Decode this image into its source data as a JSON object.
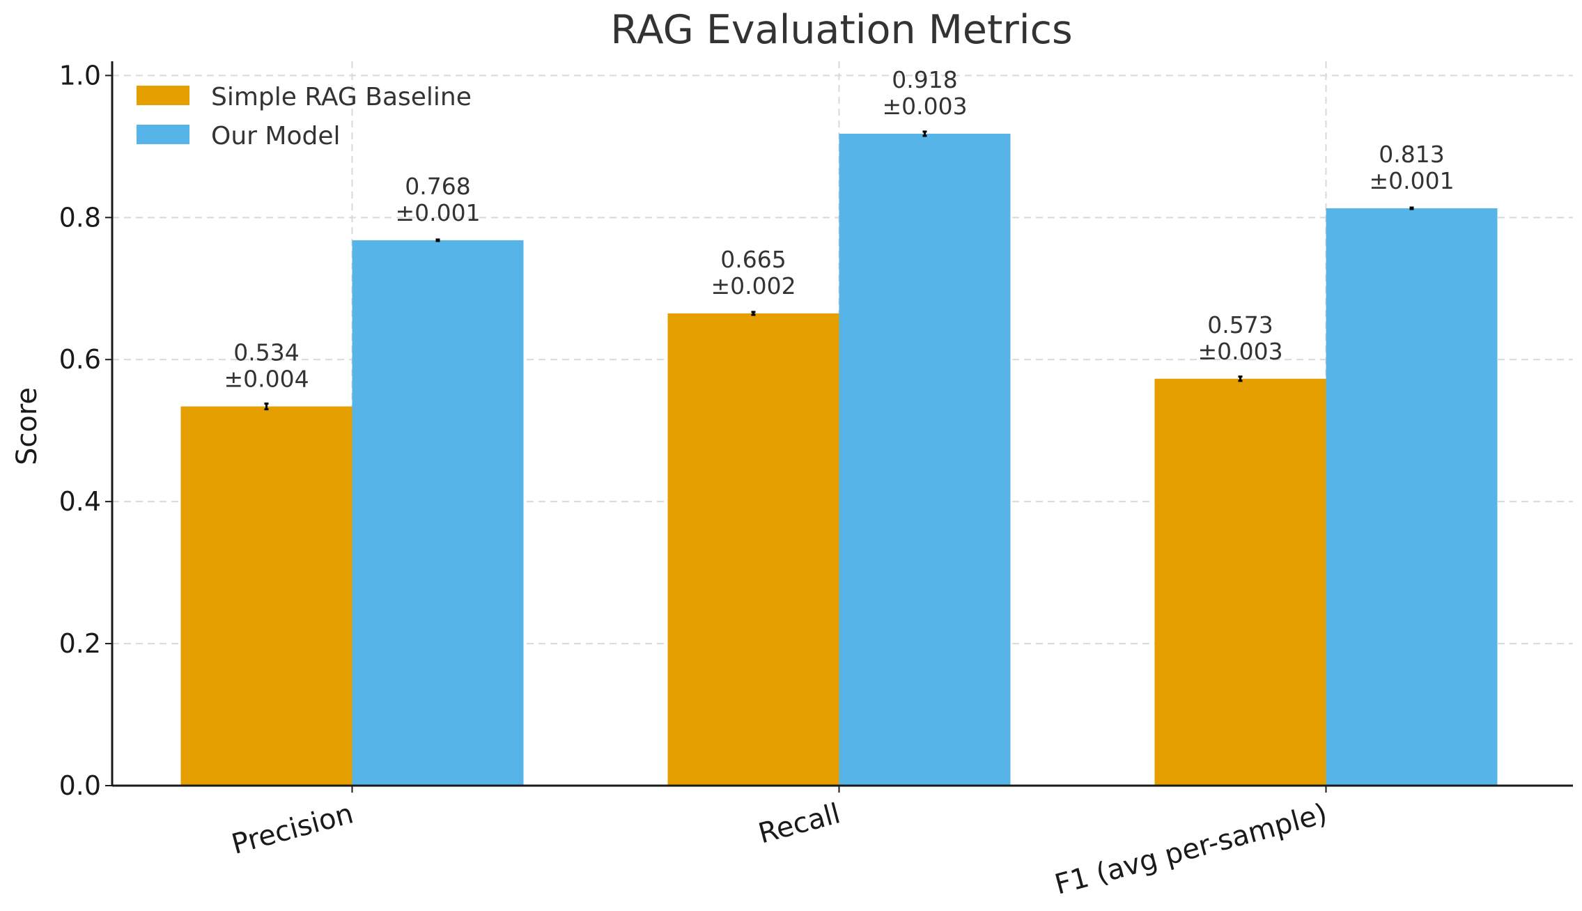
{
  "chart_data": {
    "type": "bar",
    "title": "RAG Evaluation Metrics",
    "xlabel": "",
    "ylabel": "Score",
    "ylim": [
      0,
      1.02
    ],
    "yticks": [
      "0.0",
      "0.2",
      "0.4",
      "0.6",
      "0.8",
      "1.0"
    ],
    "categories": [
      "Precision",
      "Recall",
      "F1 (avg per-sample)"
    ],
    "grid": "dashed",
    "legend_position": "top-left",
    "series": [
      {
        "name": "Simple RAG Baseline",
        "color": "#E69F00",
        "values": [
          0.534,
          0.665,
          0.573
        ],
        "errors": [
          0.004,
          0.002,
          0.003
        ],
        "value_labels": [
          "0.534",
          "0.665",
          "0.573"
        ],
        "error_labels": [
          "±0.004",
          "±0.002",
          "±0.003"
        ]
      },
      {
        "name": "Our Model",
        "color": "#56B4E9",
        "values": [
          0.768,
          0.918,
          0.813
        ],
        "errors": [
          0.001,
          0.003,
          0.001
        ],
        "value_labels": [
          "0.768",
          "0.918",
          "0.813"
        ],
        "error_labels": [
          "±0.001",
          "±0.003",
          "±0.001"
        ]
      }
    ]
  }
}
